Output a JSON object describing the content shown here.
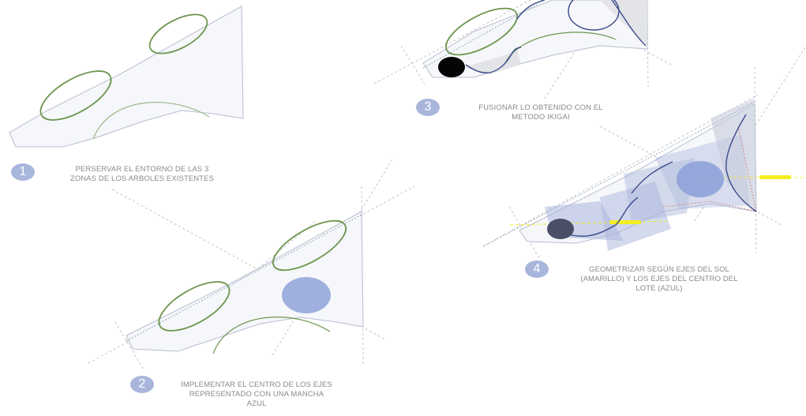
{
  "colors": {
    "tree_zone": "#6e9650",
    "blue_spot": "#8fa2d8",
    "sun_axis": "#f2ee20",
    "curve_dark": "#3a4a8a",
    "outline": "#b8bcd2",
    "axis_line": "#c4c4c4",
    "badge": "#a9b6dc",
    "label_text": "#8a8a8a"
  },
  "steps": [
    {
      "number": "1",
      "line1": "PERSERVAR EL ENTORNO DE LAS 3",
      "line2": "ZONAS DE LOS ARBOLES EXISTENTES",
      "line3": ""
    },
    {
      "number": "2",
      "line1": "IMPLEMENTAR EL CENTRO DE LOS EJES",
      "line2": "REPRESENTADO CON UNA MANCHA",
      "line3": "AZUL"
    },
    {
      "number": "3",
      "line1": "FUSIONAR LO OBTENIDO CON EL",
      "line2": "METODO IKIGAI",
      "line3": ""
    },
    {
      "number": "4",
      "line1": "GEOMETRIZAR SEGÚN EJES DEL SOL",
      "line2": "(AMARILLO) Y LOS EJES DEL CENTRO DEL",
      "line3": "LOTE (AZUL)"
    }
  ]
}
